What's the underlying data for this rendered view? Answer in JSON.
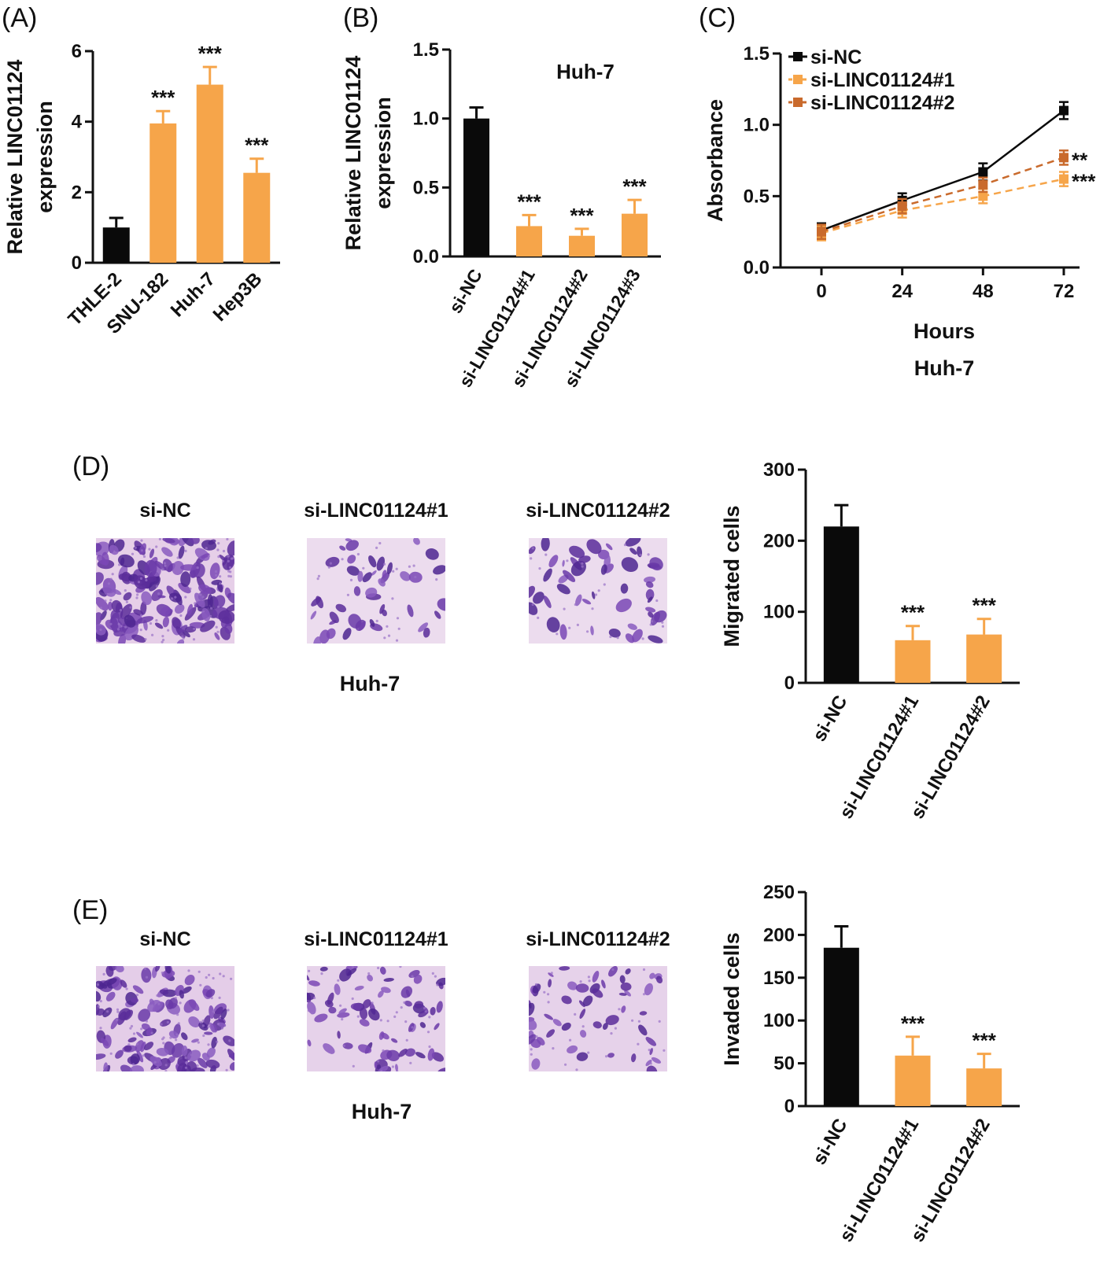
{
  "colors": {
    "black": "#0a0a0a",
    "orange": "#f6a54a",
    "dark_orange": "#c96a2c",
    "stain_bg": "#e6cfe8",
    "stain_cell": "#6a3aa8"
  },
  "panels": {
    "A": {
      "letter": "(A)"
    },
    "B": {
      "letter": "(B)",
      "subtitle": "Huh-7"
    },
    "C": {
      "letter": "(C)",
      "subtitle": "Huh-7"
    },
    "D": {
      "letter": "(D)",
      "cell_line": "Huh-7",
      "image_labels": [
        "si-NC",
        "si-LINC01124#1",
        "si-LINC01124#2"
      ]
    },
    "E": {
      "letter": "(E)",
      "cell_line": "Huh-7",
      "image_labels": [
        "si-NC",
        "si-LINC01124#1",
        "si-LINC01124#2"
      ]
    }
  },
  "chart_data": [
    {
      "id": "A",
      "type": "bar",
      "categories": [
        "THLE-2",
        "SNU-182",
        "Huh-7",
        "Hep3B"
      ],
      "values": [
        1.0,
        3.95,
        5.05,
        2.55
      ],
      "errors": [
        0.27,
        0.35,
        0.5,
        0.4
      ],
      "colors": [
        "black",
        "orange",
        "orange",
        "orange"
      ],
      "significance": [
        "",
        "***",
        "***",
        "***"
      ],
      "ylabel": [
        "Relative LINC01124",
        "expression"
      ],
      "ylim": [
        0,
        6
      ],
      "yticks": [
        "0",
        "2",
        "4",
        "6"
      ],
      "ytick_values": [
        0,
        2,
        4,
        6
      ]
    },
    {
      "id": "B",
      "type": "bar",
      "categories": [
        "si-NC",
        "si-LINC01124#1",
        "si-LINC01124#2",
        "si-LINC01124#3"
      ],
      "values": [
        1.0,
        0.22,
        0.15,
        0.31
      ],
      "errors": [
        0.08,
        0.08,
        0.05,
        0.1
      ],
      "colors": [
        "black",
        "orange",
        "orange",
        "orange"
      ],
      "significance": [
        "",
        "***",
        "***",
        "***"
      ],
      "ylabel": [
        "Relative LINC01124",
        "expression"
      ],
      "ylim": [
        0,
        1.5
      ],
      "yticks": [
        "0.0",
        "0.5",
        "1.0",
        "1.5"
      ],
      "ytick_values": [
        0,
        0.5,
        1.0,
        1.5
      ]
    },
    {
      "id": "C",
      "type": "line",
      "x": [
        0,
        24,
        48,
        72
      ],
      "xticks": [
        "0",
        "24",
        "48",
        "72"
      ],
      "xlabel": "Hours",
      "ylabel": "Absorbance",
      "ylim": [
        0,
        1.5
      ],
      "yticks": [
        "0.0",
        "0.5",
        "1.0",
        "1.5"
      ],
      "ytick_values": [
        0,
        0.5,
        1.0,
        1.5
      ],
      "series": [
        {
          "name": "si-NC",
          "values": [
            0.26,
            0.47,
            0.67,
            1.1
          ],
          "errors": [
            0.05,
            0.05,
            0.06,
            0.06
          ],
          "color": "black",
          "dashed": false,
          "significance": ""
        },
        {
          "name": "si-LINC01124#1",
          "values": [
            0.24,
            0.4,
            0.5,
            0.62
          ],
          "errors": [
            0.05,
            0.05,
            0.05,
            0.05
          ],
          "color": "orange",
          "dashed": true,
          "significance": "***"
        },
        {
          "name": "si-LINC01124#2",
          "values": [
            0.25,
            0.43,
            0.58,
            0.77
          ],
          "errors": [
            0.05,
            0.05,
            0.05,
            0.05
          ],
          "color": "dark_orange",
          "dashed": true,
          "significance": "**"
        }
      ]
    },
    {
      "id": "D",
      "type": "bar",
      "categories": [
        "si-NC",
        "si-LINC01124#1",
        "si-LINC01124#2"
      ],
      "values": [
        220,
        60,
        68
      ],
      "errors": [
        30,
        20,
        22
      ],
      "colors": [
        "black",
        "orange",
        "orange"
      ],
      "significance": [
        "",
        "***",
        "***"
      ],
      "ylabel": [
        "Migrated cells"
      ],
      "ylim": [
        0,
        300
      ],
      "yticks": [
        "0",
        "100",
        "200",
        "300"
      ],
      "ytick_values": [
        0,
        100,
        200,
        300
      ]
    },
    {
      "id": "E",
      "type": "bar",
      "categories": [
        "si-NC",
        "si-LINC01124#1",
        "si-LINC01124#2"
      ],
      "values": [
        185,
        59,
        44
      ],
      "errors": [
        25,
        22,
        17
      ],
      "colors": [
        "black",
        "orange",
        "orange"
      ],
      "significance": [
        "",
        "***",
        "***"
      ],
      "ylabel": [
        "Invaded cells"
      ],
      "ylim": [
        0,
        250
      ],
      "yticks": [
        "0",
        "50",
        "100",
        "150",
        "200",
        "250"
      ],
      "ytick_values": [
        0,
        50,
        100,
        150,
        200,
        250
      ]
    }
  ]
}
